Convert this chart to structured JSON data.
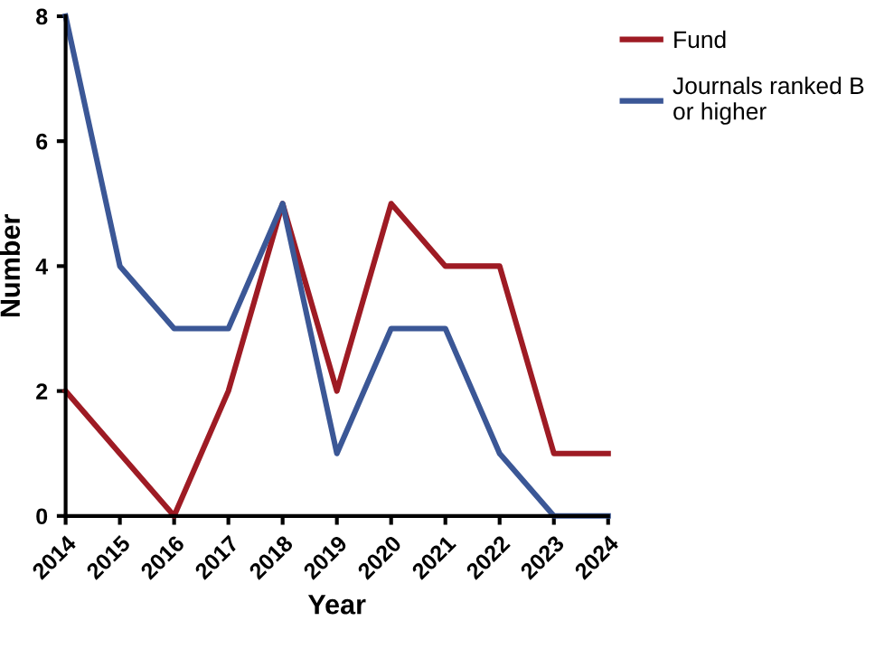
{
  "chart_data": {
    "type": "line",
    "xlabel": "Year",
    "ylabel": "Number",
    "x": [
      2014,
      2015,
      2016,
      2017,
      2018,
      2019,
      2020,
      2021,
      2022,
      2023,
      2024
    ],
    "series": [
      {
        "name": "Fund",
        "color": "#9e1b24",
        "values": [
          2,
          1,
          0,
          2,
          5,
          2,
          5,
          4,
          4,
          1,
          1
        ]
      },
      {
        "name": "Journals ranked B\nor higher",
        "color": "#3b5796",
        "values": [
          8,
          4,
          3,
          3,
          5,
          1,
          3,
          3,
          1,
          0,
          0
        ]
      }
    ],
    "xlim": [
      2014,
      2024
    ],
    "xticks": [
      2014,
      2015,
      2016,
      2017,
      2018,
      2019,
      2020,
      2021,
      2022,
      2023,
      2024
    ],
    "ylim": [
      0,
      8
    ],
    "yticks": [
      0,
      2,
      4,
      6,
      8
    ],
    "grid": false,
    "legend": "top right",
    "marker": "none",
    "line_style": "solid"
  }
}
